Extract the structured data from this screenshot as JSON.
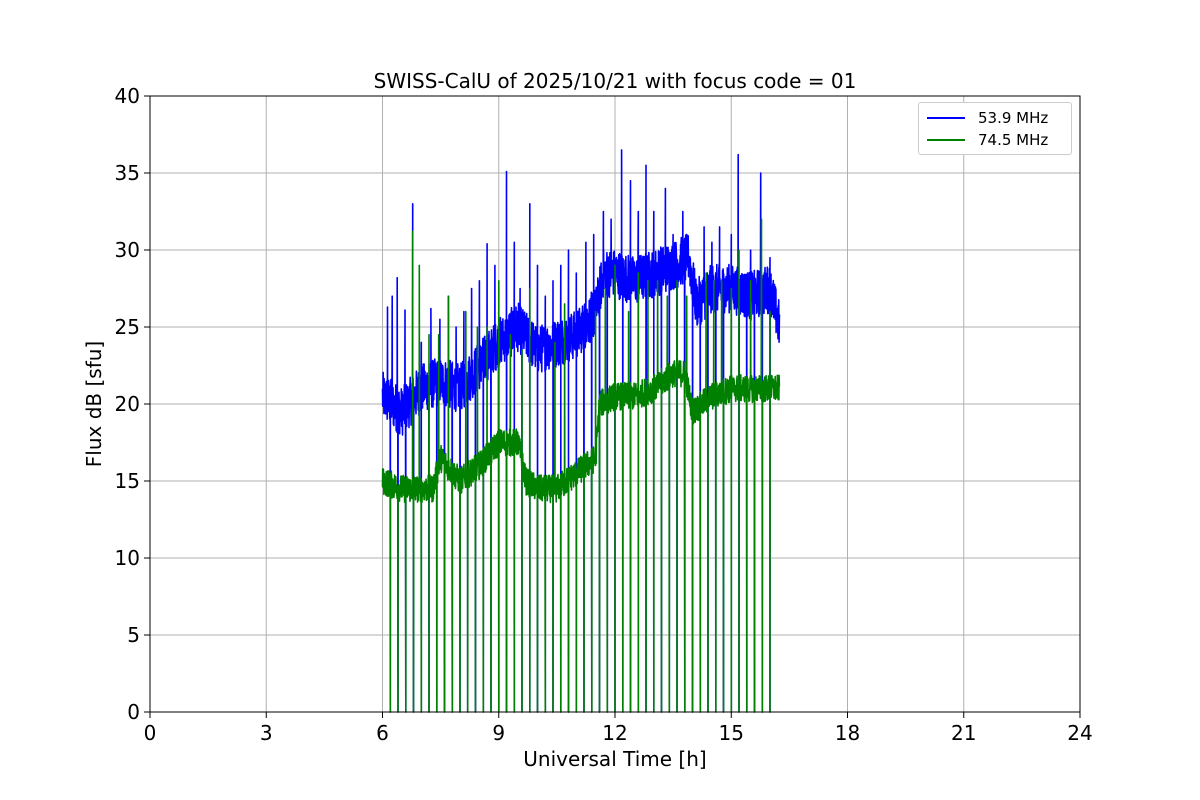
{
  "chart_data": {
    "type": "line",
    "title": "SWISS-CalU of 2025/10/21 with focus code = 01",
    "xlabel": "Universal Time [h]",
    "ylabel": "Flux dB [sfu]",
    "xlim": [
      0,
      24
    ],
    "ylim": [
      0,
      40
    ],
    "xticks": [
      0,
      3,
      6,
      9,
      12,
      15,
      18,
      21,
      24
    ],
    "yticks": [
      0,
      5,
      10,
      15,
      20,
      25,
      30,
      35,
      40
    ],
    "grid": true,
    "legend_position": "top-right",
    "data_start_h": 6.0,
    "data_end_h": 16.25,
    "series": [
      {
        "name": "53.9 MHz",
        "color": "#0000ff",
        "baseline_points": [
          [
            6.0,
            20.5
          ],
          [
            6.5,
            19.5
          ],
          [
            7.0,
            21.0
          ],
          [
            7.5,
            21.5
          ],
          [
            8.0,
            21.0
          ],
          [
            8.5,
            22.5
          ],
          [
            9.0,
            24.0
          ],
          [
            9.5,
            25.0
          ],
          [
            10.0,
            23.5
          ],
          [
            10.5,
            24.0
          ],
          [
            11.0,
            24.5
          ],
          [
            11.5,
            26.0
          ],
          [
            11.7,
            28.5
          ],
          [
            12.0,
            28.5
          ],
          [
            12.5,
            28.0
          ],
          [
            13.0,
            28.5
          ],
          [
            13.5,
            29.0
          ],
          [
            13.9,
            29.5
          ],
          [
            14.1,
            26.5
          ],
          [
            14.5,
            27.5
          ],
          [
            15.0,
            27.5
          ],
          [
            15.5,
            27.0
          ],
          [
            16.0,
            27.5
          ],
          [
            16.25,
            25.0
          ]
        ],
        "spikes": [
          [
            6.13,
            26.3
          ],
          [
            6.25,
            27.0
          ],
          [
            6.38,
            28.2
          ],
          [
            6.58,
            26.1
          ],
          [
            6.78,
            33.0
          ],
          [
            7.0,
            24.0
          ],
          [
            7.25,
            26.2
          ],
          [
            7.48,
            25.5
          ],
          [
            7.7,
            27.0
          ],
          [
            7.9,
            25.0
          ],
          [
            8.1,
            26.0
          ],
          [
            8.3,
            27.5
          ],
          [
            8.5,
            28.0
          ],
          [
            8.7,
            30.4
          ],
          [
            8.9,
            29.0
          ],
          [
            9.2,
            35.1
          ],
          [
            9.4,
            30.5
          ],
          [
            9.55,
            27.5
          ],
          [
            9.8,
            33.0
          ],
          [
            10.0,
            29.0
          ],
          [
            10.2,
            27.0
          ],
          [
            10.4,
            28.0
          ],
          [
            10.6,
            29.0
          ],
          [
            10.8,
            30.0
          ],
          [
            11.0,
            28.5
          ],
          [
            11.25,
            30.5
          ],
          [
            11.45,
            31.0
          ],
          [
            11.7,
            32.5
          ],
          [
            11.9,
            32.0
          ],
          [
            12.17,
            36.5
          ],
          [
            12.4,
            34.5
          ],
          [
            12.6,
            32.5
          ],
          [
            12.8,
            35.5
          ],
          [
            13.0,
            32.5
          ],
          [
            13.3,
            34.0
          ],
          [
            13.5,
            31.0
          ],
          [
            13.75,
            32.5
          ],
          [
            14.0,
            28.0
          ],
          [
            14.3,
            31.5
          ],
          [
            14.5,
            30.5
          ],
          [
            14.7,
            31.5
          ],
          [
            15.0,
            31.0
          ],
          [
            15.18,
            36.2
          ],
          [
            15.5,
            30.0
          ],
          [
            15.76,
            35.0
          ],
          [
            16.0,
            29.5
          ]
        ]
      },
      {
        "name": "74.5 MHz",
        "color": "#008000",
        "baseline_points": [
          [
            6.0,
            15.0
          ],
          [
            6.5,
            14.5
          ],
          [
            7.0,
            14.5
          ],
          [
            7.3,
            14.5
          ],
          [
            7.5,
            16.5
          ],
          [
            8.0,
            15.0
          ],
          [
            8.5,
            16.0
          ],
          [
            9.0,
            17.5
          ],
          [
            9.5,
            17.5
          ],
          [
            9.7,
            15.0
          ],
          [
            10.0,
            14.5
          ],
          [
            10.5,
            14.5
          ],
          [
            11.0,
            15.5
          ],
          [
            11.5,
            16.5
          ],
          [
            11.6,
            20.0
          ],
          [
            12.0,
            20.5
          ],
          [
            12.5,
            20.5
          ],
          [
            13.0,
            21.0
          ],
          [
            13.5,
            22.0
          ],
          [
            13.8,
            22.0
          ],
          [
            14.0,
            19.5
          ],
          [
            14.5,
            20.5
          ],
          [
            15.0,
            21.0
          ],
          [
            15.5,
            21.0
          ],
          [
            16.0,
            21.0
          ],
          [
            16.25,
            21.0
          ]
        ],
        "spikes": [
          [
            6.0,
            22.2
          ],
          [
            6.78,
            31.2
          ],
          [
            6.95,
            29.0
          ],
          [
            7.2,
            24.5
          ],
          [
            7.45,
            24.5
          ],
          [
            7.7,
            27.0
          ],
          [
            8.15,
            26.0
          ],
          [
            8.45,
            25.0
          ],
          [
            8.7,
            25.0
          ],
          [
            9.0,
            28.0
          ],
          [
            9.3,
            24.5
          ],
          [
            9.6,
            23.5
          ],
          [
            9.8,
            27.5
          ],
          [
            10.45,
            24.0
          ],
          [
            10.7,
            26.5
          ],
          [
            11.5,
            26.0
          ],
          [
            11.75,
            27.5
          ],
          [
            12.0,
            29.0
          ],
          [
            12.35,
            26.0
          ],
          [
            12.6,
            28.5
          ],
          [
            12.85,
            28.0
          ],
          [
            13.1,
            28.0
          ],
          [
            13.35,
            27.0
          ],
          [
            13.6,
            28.0
          ],
          [
            13.85,
            27.0
          ],
          [
            14.35,
            28.5
          ],
          [
            14.55,
            28.0
          ],
          [
            14.75,
            28.0
          ],
          [
            15.0,
            27.5
          ],
          [
            15.2,
            30.0
          ],
          [
            15.5,
            28.0
          ],
          [
            15.78,
            32.0
          ],
          [
            16.0,
            26.0
          ]
        ]
      }
    ],
    "dropouts_h": [
      6.0,
      6.2,
      6.4,
      6.6,
      6.8,
      7.0,
      7.2,
      7.4,
      7.6,
      7.8,
      8.0,
      8.2,
      8.4,
      8.6,
      8.8,
      9.0,
      9.2,
      9.4,
      9.6,
      9.8,
      10.0,
      10.2,
      10.4,
      10.6,
      10.8,
      11.0,
      11.2,
      11.4,
      11.6,
      11.8,
      12.0,
      12.2,
      12.4,
      12.6,
      12.8,
      13.0,
      13.2,
      13.4,
      13.6,
      13.8,
      14.0,
      14.2,
      14.4,
      14.6,
      14.8,
      15.0,
      15.2,
      15.4,
      15.6,
      15.8,
      16.0
    ],
    "tick_labels_x": [
      "0",
      "3",
      "6",
      "9",
      "12",
      "15",
      "18",
      "21",
      "24"
    ],
    "tick_labels_y": [
      "0",
      "5",
      "10",
      "15",
      "20",
      "25",
      "30",
      "35",
      "40"
    ]
  }
}
